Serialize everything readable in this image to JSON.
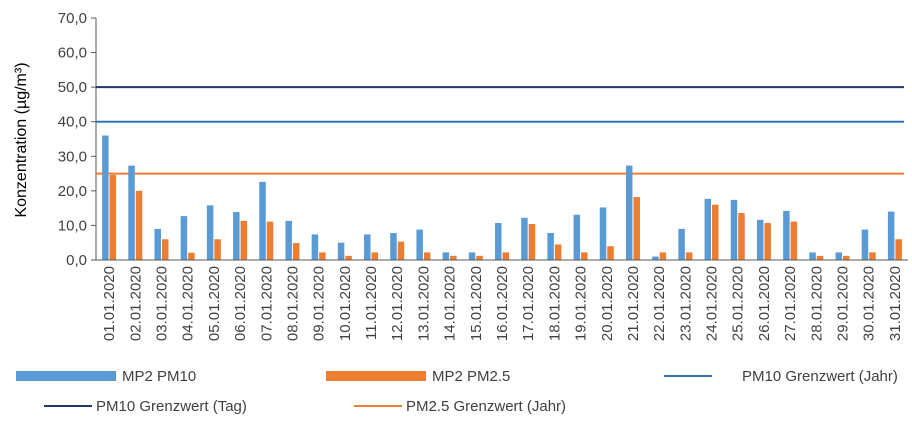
{
  "chart_data": {
    "type": "bar",
    "title": "",
    "xlabel": "",
    "ylabel": "Konzentration (µg/m³)",
    "ylim": [
      0,
      70
    ],
    "yticks": [
      "0,0",
      "10,0",
      "20,0",
      "30,0",
      "40,0",
      "50,0",
      "60,0",
      "70,0"
    ],
    "grid": false,
    "legend_position": "bottom",
    "categories": [
      "01.01.2020",
      "02.01.2020",
      "03.01.2020",
      "04.01.2020",
      "05.01.2020",
      "06.01.2020",
      "07.01.2020",
      "08.01.2020",
      "09.01.2020",
      "10.01.2020",
      "11.01.2020",
      "12.01.2020",
      "13.01.2020",
      "14.01.2020",
      "15.01.2020",
      "16.01.2020",
      "17.01.2020",
      "18.01.2020",
      "19.01.2020",
      "20.01.2020",
      "21.01.2020",
      "22.01.2020",
      "23.01.2020",
      "24.01.2020",
      "25.01.2020",
      "26.01.2020",
      "27.01.2020",
      "28.01.2020",
      "29.01.2020",
      "30.01.2020",
      "31.01.2020"
    ],
    "series": [
      {
        "name": "MP2 PM10",
        "color": "#5B9BD5",
        "values": [
          36.0,
          27.3,
          9.0,
          12.7,
          15.8,
          13.9,
          22.6,
          11.3,
          7.4,
          5.0,
          7.4,
          7.8,
          8.8,
          2.2,
          2.2,
          10.7,
          12.2,
          7.8,
          13.1,
          15.2,
          27.3,
          1.0,
          9.0,
          17.7,
          17.4,
          11.6,
          14.2,
          2.2,
          2.2,
          8.8,
          14.0
        ]
      },
      {
        "name": "MP2 PM2.5",
        "color": "#ED7D31",
        "values": [
          24.6,
          20.0,
          6.0,
          2.1,
          6.0,
          11.3,
          11.1,
          4.9,
          2.2,
          1.2,
          2.2,
          5.3,
          2.2,
          1.2,
          1.2,
          2.2,
          10.4,
          4.5,
          2.2,
          4.0,
          18.2,
          2.2,
          2.2,
          16.0,
          13.6,
          10.7,
          11.1,
          1.2,
          1.2,
          2.2,
          6.0
        ]
      }
    ],
    "reference_lines": [
      {
        "name": "PM10 Grenzwert (Jahr)",
        "value": 40,
        "color": "#2E75B6"
      },
      {
        "name": "PM10 Grenzwert (Tag)",
        "value": 50,
        "color": "#1F3864"
      },
      {
        "name": "PM2.5 Grenzwert (Jahr)",
        "value": 25,
        "color": "#ED7D31"
      }
    ]
  }
}
